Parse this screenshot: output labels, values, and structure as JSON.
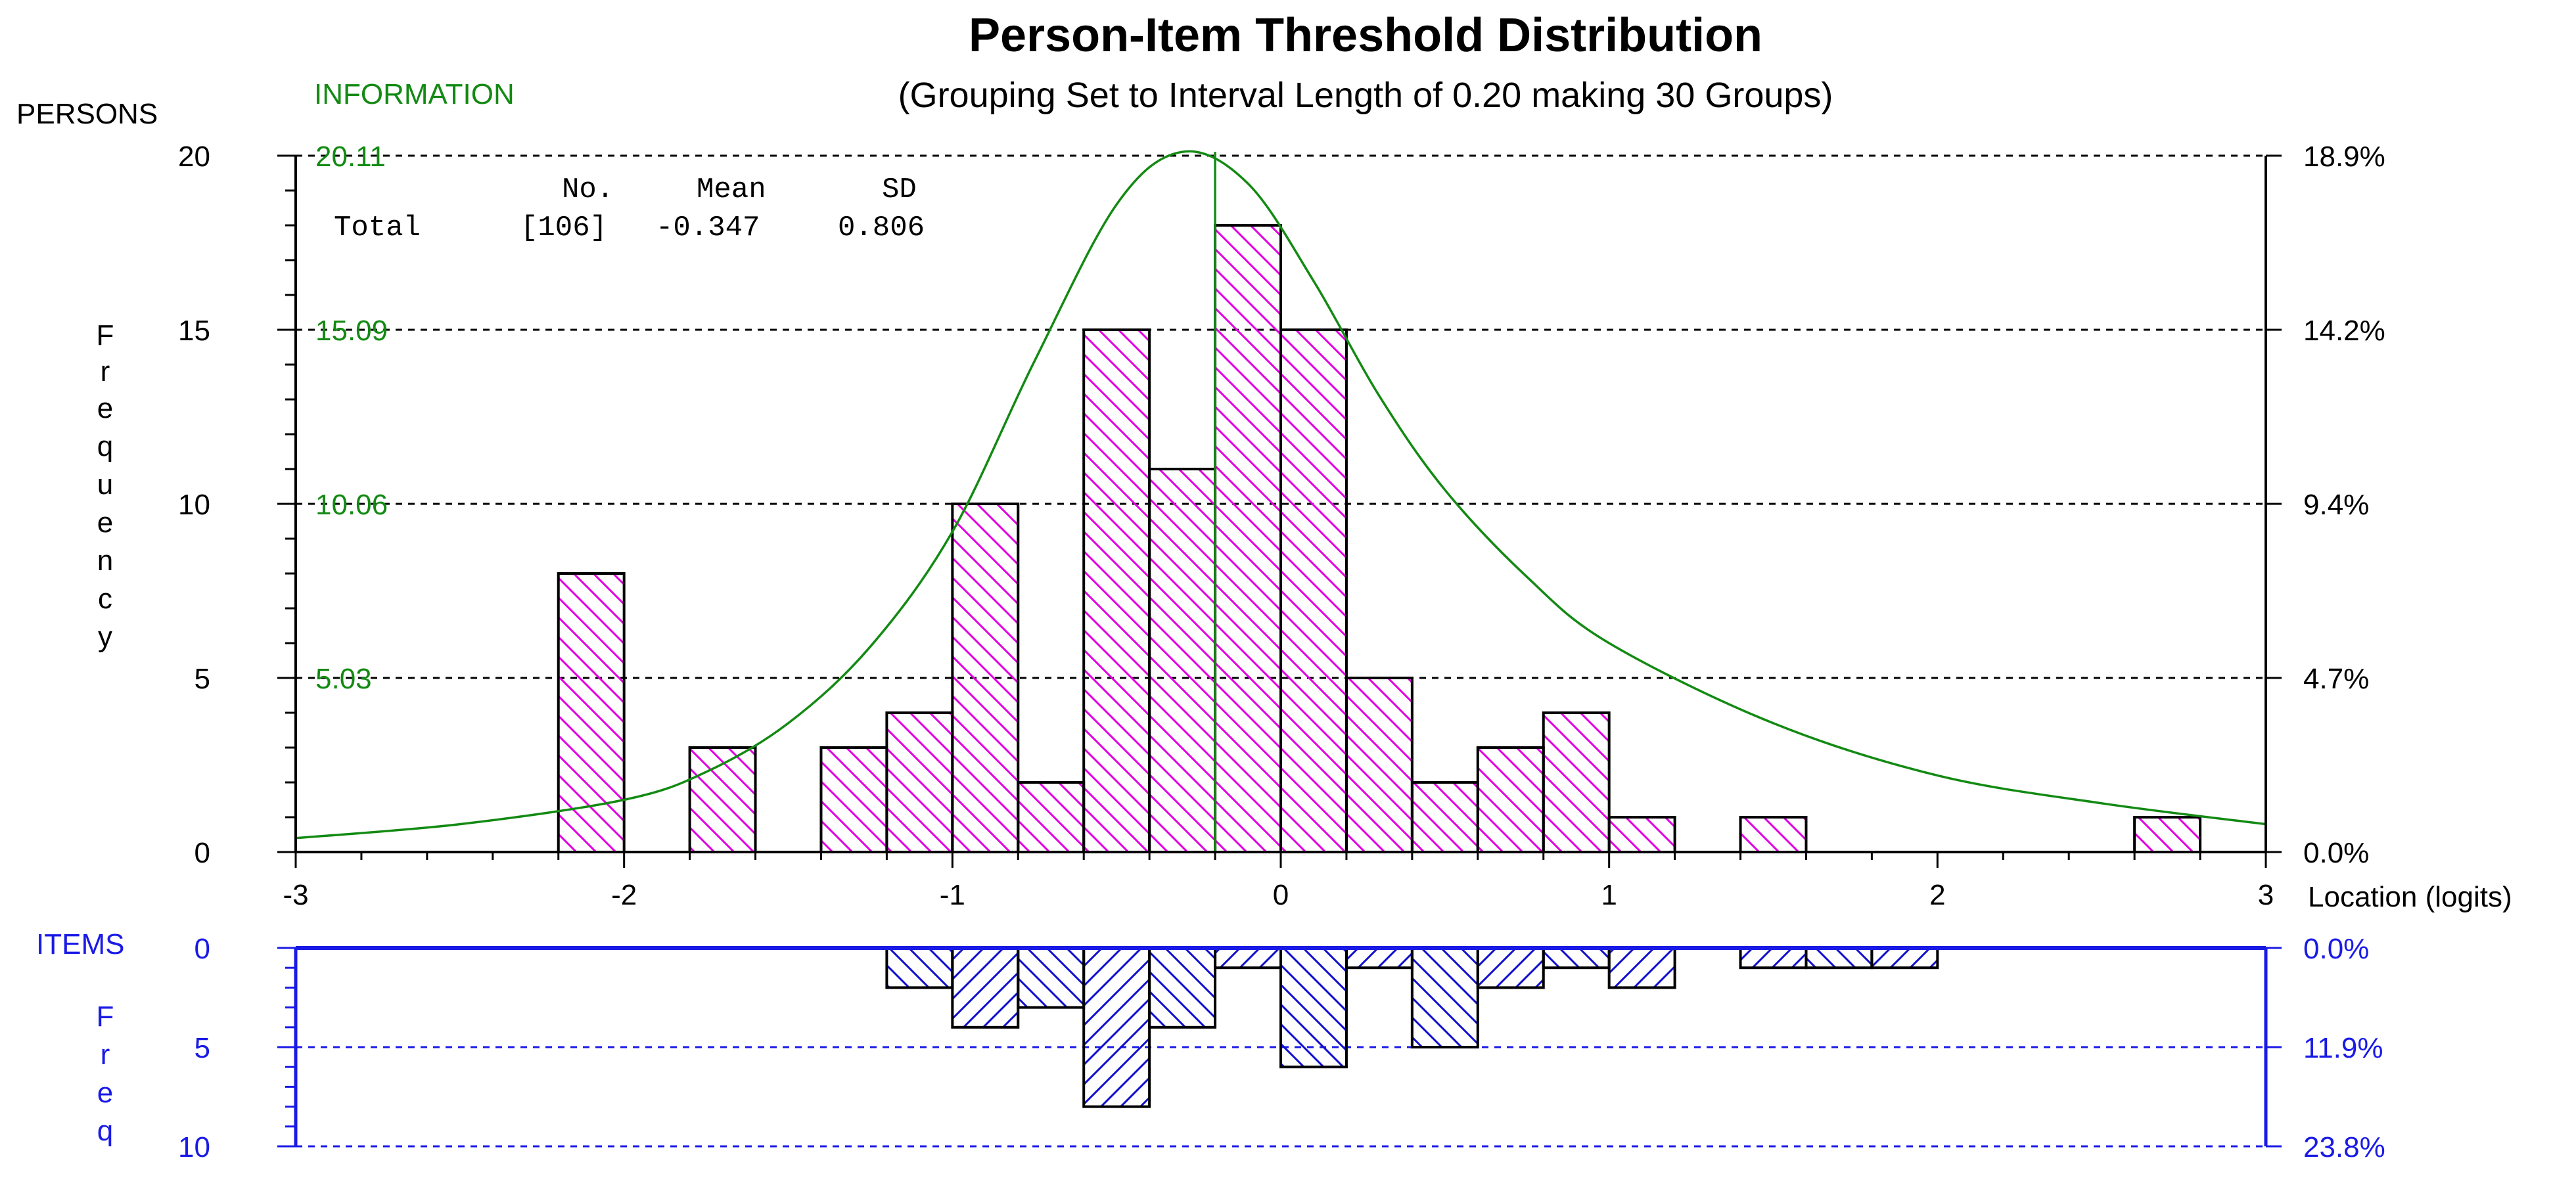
{
  "chart_data": {
    "title": "Person-Item Threshold Distribution",
    "subtitle": "(Grouping Set to Interval Length of  0.20  making  30  Groups)",
    "type": "bar",
    "x_axis": {
      "label": "Location (logits)",
      "range": [
        -3,
        3
      ],
      "ticks": [
        -3,
        -2,
        -1,
        0,
        1,
        2,
        3
      ],
      "tick_labels": [
        "-3",
        "-2",
        "-1",
        "0",
        "1",
        "2",
        "3"
      ]
    },
    "persons": {
      "axis_title": "PERSONS",
      "ylabel": "Frequency",
      "ylim": [
        0,
        20
      ],
      "ticks": [
        0,
        5,
        10,
        15,
        20
      ],
      "tick_labels": [
        "0",
        "5",
        "10",
        "15",
        "20"
      ],
      "pct_labels": [
        "0.0%",
        "4.7%",
        "9.4%",
        "14.2%",
        "18.9%"
      ],
      "information_title": "INFORMATION",
      "information_labels": [
        "5.03",
        "10.06",
        "15.09",
        "20.11"
      ],
      "stats": {
        "header": [
          "No.",
          "Mean",
          "SD"
        ],
        "row_label": "Total",
        "no": "[106]",
        "mean": "-0.347",
        "sd": "0.806"
      },
      "mean_line_x": -0.347,
      "bars": [
        {
          "x0": -2.2,
          "x1": -2.0,
          "value": 8
        },
        {
          "x0": -1.8,
          "x1": -1.6,
          "value": 3
        },
        {
          "x0": -1.4,
          "x1": -1.2,
          "value": 3
        },
        {
          "x0": -1.2,
          "x1": -1.0,
          "value": 4
        },
        {
          "x0": -1.0,
          "x1": -0.8,
          "value": 10
        },
        {
          "x0": -0.8,
          "x1": -0.6,
          "value": 2
        },
        {
          "x0": -0.6,
          "x1": -0.4,
          "value": 15
        },
        {
          "x0": -0.4,
          "x1": -0.2,
          "value": 11
        },
        {
          "x0": -0.2,
          "x1": 0.0,
          "value": 18
        },
        {
          "x0": 0.0,
          "x1": 0.2,
          "value": 15
        },
        {
          "x0": 0.2,
          "x1": 0.4,
          "value": 5
        },
        {
          "x0": 0.4,
          "x1": 0.6,
          "value": 2
        },
        {
          "x0": 0.6,
          "x1": 0.8,
          "value": 3
        },
        {
          "x0": 0.8,
          "x1": 1.0,
          "value": 4
        },
        {
          "x0": 1.0,
          "x1": 1.2,
          "value": 1
        },
        {
          "x0": 1.4,
          "x1": 1.6,
          "value": 1
        },
        {
          "x0": 2.6,
          "x1": 2.8,
          "value": 1
        }
      ],
      "information_curve": {
        "peak_x": -0.3,
        "peak_value": 20.11,
        "x": [
          -3.0,
          -2.5,
          -2.0,
          -1.75,
          -1.5,
          -1.25,
          -1.0,
          -0.75,
          -0.5,
          -0.3,
          -0.1,
          0.1,
          0.3,
          0.5,
          0.75,
          1.0,
          1.5,
          2.0,
          2.5,
          3.0
        ],
        "value": [
          0.4,
          0.8,
          1.5,
          2.3,
          3.7,
          5.9,
          9.2,
          14.1,
          18.6,
          20.11,
          19.2,
          16.4,
          13.1,
          10.4,
          7.9,
          6.0,
          3.7,
          2.2,
          1.4,
          0.8
        ]
      }
    },
    "items": {
      "axis_title": "ITEMS",
      "ylabel": "Freq",
      "ylim": [
        0,
        10
      ],
      "ticks": [
        0,
        5,
        10
      ],
      "tick_labels": [
        "0",
        "5",
        "10"
      ],
      "pct_labels": [
        "0.0%",
        "11.9%",
        "23.8%"
      ],
      "bars": [
        {
          "x0": -1.2,
          "x1": -1.0,
          "value": 2
        },
        {
          "x0": -1.0,
          "x1": -0.8,
          "value": 4
        },
        {
          "x0": -0.8,
          "x1": -0.6,
          "value": 3
        },
        {
          "x0": -0.6,
          "x1": -0.4,
          "value": 8
        },
        {
          "x0": -0.4,
          "x1": -0.2,
          "value": 4
        },
        {
          "x0": -0.2,
          "x1": 0.0,
          "value": 1
        },
        {
          "x0": 0.0,
          "x1": 0.2,
          "value": 6
        },
        {
          "x0": 0.2,
          "x1": 0.4,
          "value": 1
        },
        {
          "x0": 0.4,
          "x1": 0.6,
          "value": 5
        },
        {
          "x0": 0.6,
          "x1": 0.8,
          "value": 2
        },
        {
          "x0": 0.8,
          "x1": 1.0,
          "value": 1
        },
        {
          "x0": 1.0,
          "x1": 1.2,
          "value": 2
        },
        {
          "x0": 1.4,
          "x1": 1.6,
          "value": 1
        },
        {
          "x0": 1.6,
          "x1": 1.8,
          "value": 1
        },
        {
          "x0": 1.8,
          "x1": 2.0,
          "value": 1
        }
      ]
    },
    "colors": {
      "person_hatch": "#e000e0",
      "item_hatch": "#1010cc",
      "item_axis": "#1a1ae6",
      "information": "#138a13",
      "grid": "#000000"
    }
  }
}
